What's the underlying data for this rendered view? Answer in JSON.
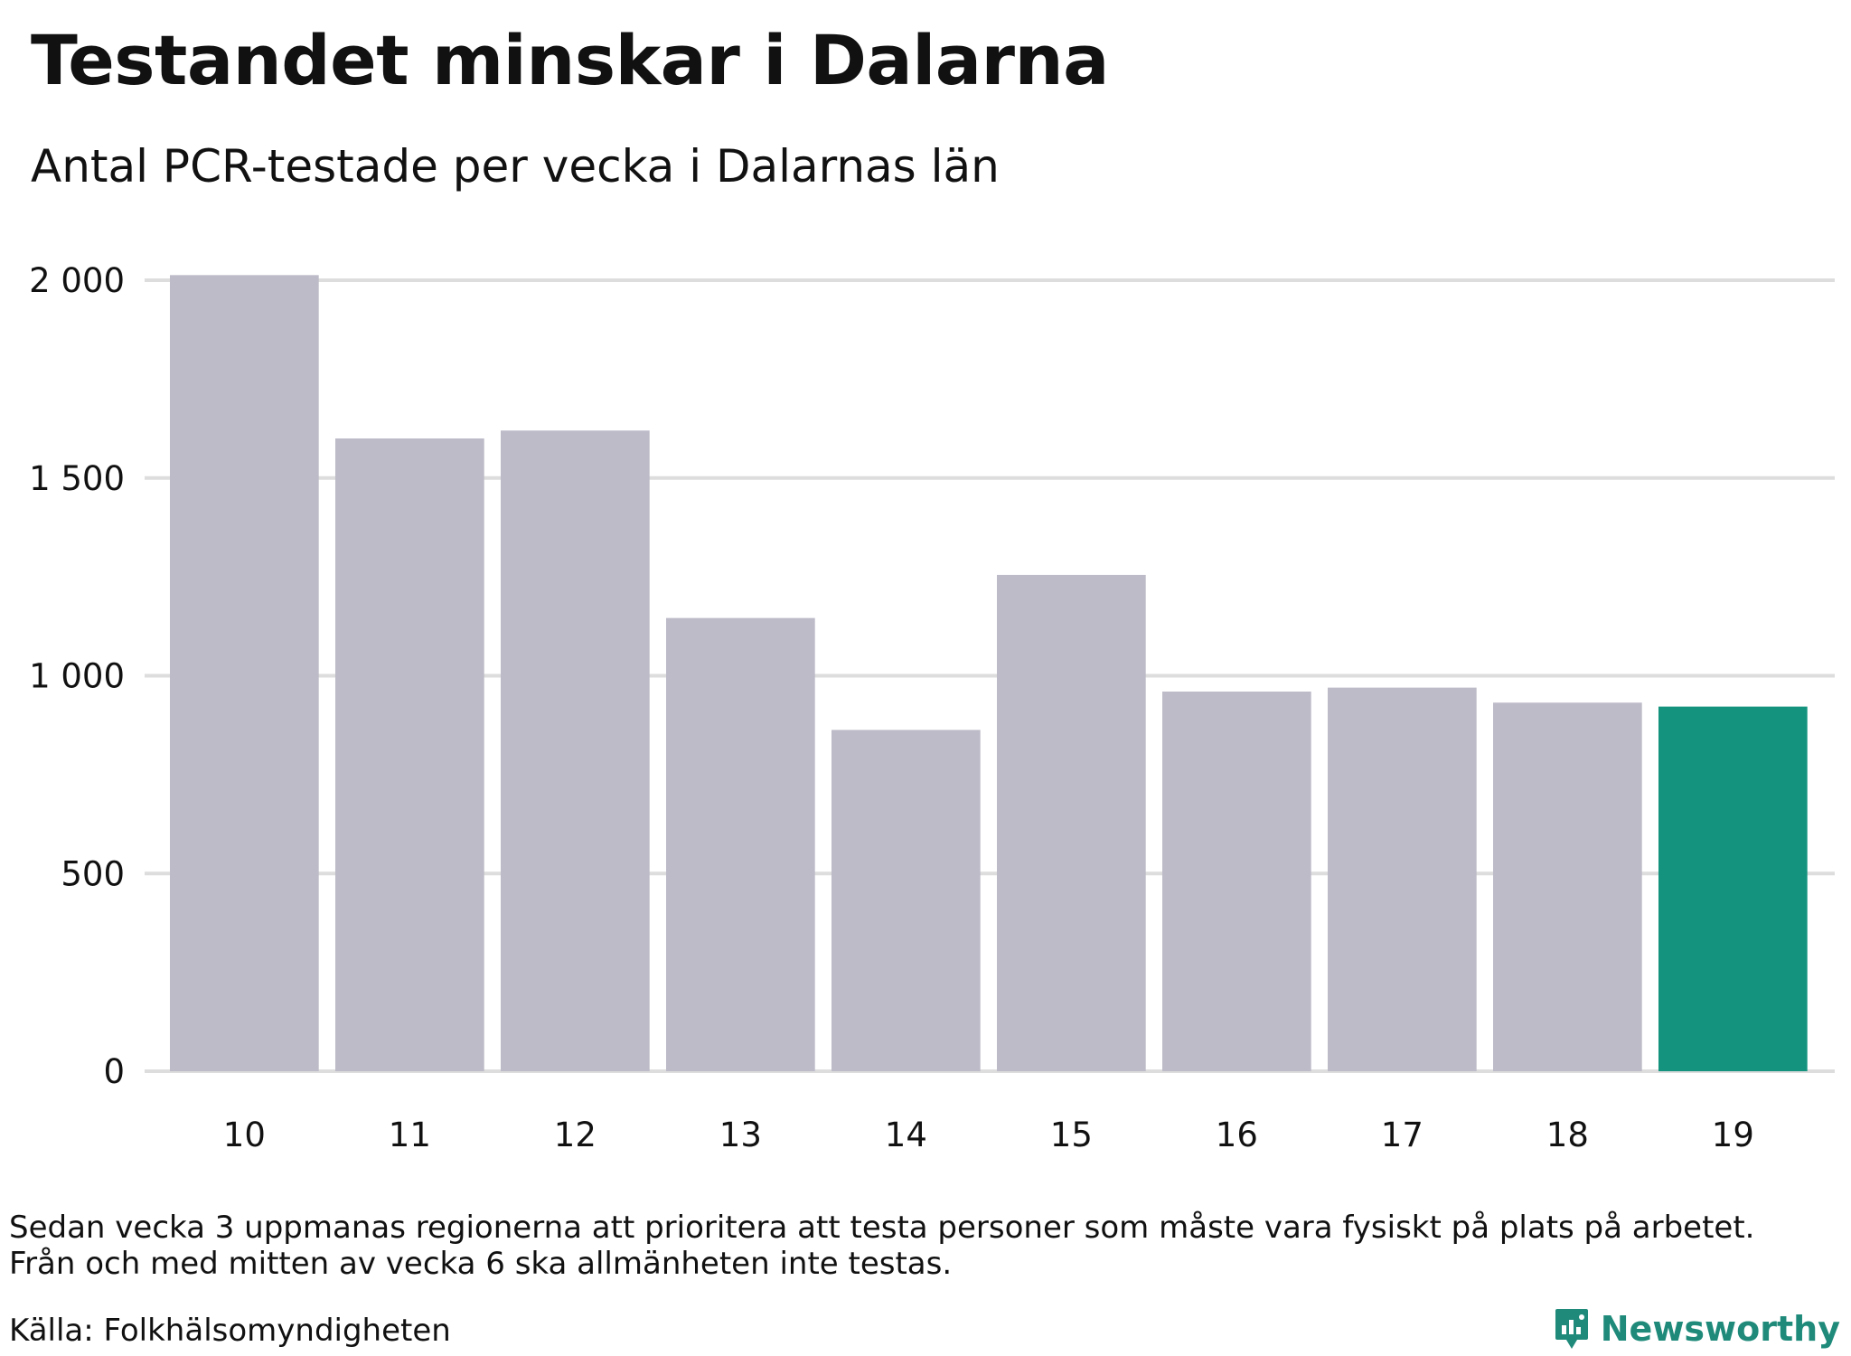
{
  "header": {
    "title": "Testandet minskar i Dalarna",
    "subtitle": "Antal PCR-testade per vecka i Dalarnas län"
  },
  "footer": {
    "note_line1": "Sedan vecka 3 uppmanas regionerna att prioritera att testa personer som måste vara fysiskt på plats på arbetet.",
    "note_line2": "Från och med mitten av vecka 6 ska allmänheten inte testas.",
    "source": "Källa: Folkhälsomyndigheten",
    "brand": "Newsworthy",
    "brand_icon": "newsworthy-logo-icon"
  },
  "colors": {
    "bar": "#bdbbc8",
    "highlight": "#14937f",
    "grid": "#dddddd",
    "brand": "#1f8a7a"
  },
  "chart_data": {
    "type": "bar",
    "categories": [
      "10",
      "11",
      "12",
      "13",
      "14",
      "15",
      "16",
      "17",
      "18",
      "19"
    ],
    "values": [
      2013,
      1600,
      1620,
      1146,
      863,
      1255,
      960,
      970,
      932,
      922
    ],
    "highlight_index": 9,
    "ylim": [
      0,
      2000
    ],
    "yticks": [
      0,
      500,
      1000,
      1500,
      2000
    ],
    "ytick_labels": [
      "0",
      "500",
      "1 000",
      "1 500",
      "2 000"
    ],
    "grid": true,
    "xlabel": "",
    "ylabel": ""
  }
}
